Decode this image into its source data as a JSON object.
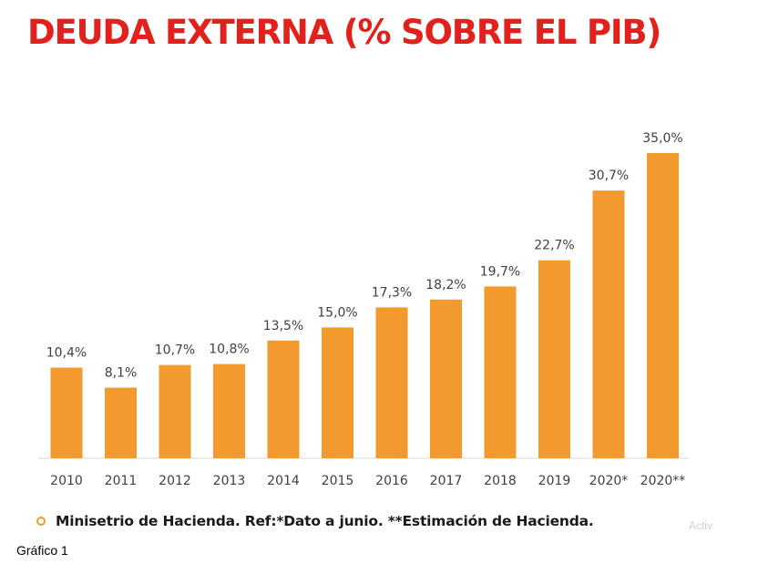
{
  "chart_data": {
    "type": "bar",
    "title": "DEUDA EXTERNA (% SOBRE EL PIB)",
    "categories": [
      "2010",
      "2011",
      "2012",
      "2013",
      "2014",
      "2015",
      "2016",
      "2017",
      "2018",
      "2019",
      "2020*",
      "2020**"
    ],
    "values": [
      10.4,
      8.1,
      10.7,
      10.8,
      13.5,
      15.0,
      17.3,
      18.2,
      19.7,
      22.7,
      30.7,
      35.0
    ],
    "value_labels": [
      "10,4%",
      "8,1%",
      "10,7%",
      "10,8%",
      "13,5%",
      "15,0%",
      "17,3%",
      "18,2%",
      "19,7%",
      "22,7%",
      "30,7%",
      "35,0%"
    ],
    "xlabel": "",
    "ylabel": "",
    "ylim": [
      0,
      35
    ],
    "grid": false,
    "bar_color": "#f29a2e",
    "title_color": "#e3211c"
  },
  "source": "Minisetrio de Hacienda. Ref:*Dato a junio. **Estimación de Hacienda.",
  "watermark": "Activ",
  "caption": "Gráfico 1"
}
